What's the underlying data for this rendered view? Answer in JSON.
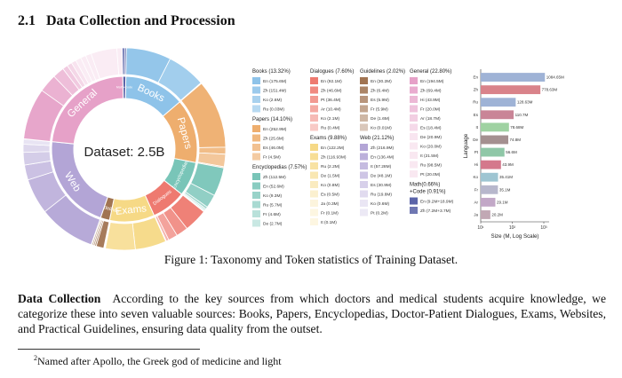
{
  "section": {
    "number": "2.1",
    "title": "Data Collection and Procession"
  },
  "caption": "Figure 1: Taxonomy and Token statistics of Training Dataset.",
  "paragraph": {
    "lead": "Data Collection",
    "text": "According to the key sources from which doctors and medical students acquire knowledge, we categorize these into seven valuable sources: Books, Papers, Encyclopedias, Doctor-Patient Dialogues, Exams, Websites, and Practical Guidelines, ensuring data quality from the outset."
  },
  "footnote": {
    "mark": "2",
    "text": "Named after Apollo, the Greek god of medicine and light"
  },
  "chart_data": [
    {
      "type": "pie",
      "center_label": "Dataset: 2.5B",
      "inner": [
        {
          "name": "Books",
          "value": 13.32,
          "color": "#8ec3e9"
        },
        {
          "name": "Papers",
          "value": 14.1,
          "color": "#eeae6e"
        },
        {
          "name": "Encyclopedias",
          "value": 7.57,
          "color": "#79c5b8"
        },
        {
          "name": "Dialogues",
          "value": 7.6,
          "color": "#ee7a70"
        },
        {
          "name": "Exams",
          "value": 9.88,
          "color": "#f6d986"
        },
        {
          "name": "Guidelines",
          "value": 2.02,
          "color": "#a17452"
        },
        {
          "name": "Web",
          "value": 21.12,
          "color": "#b3a5d6"
        },
        {
          "name": "General",
          "value": 22.8,
          "color": "#e6a1c8"
        },
        {
          "name": "Math+Code",
          "value": 0.66,
          "color": "#5b64a8"
        }
      ],
      "inner_labels": {
        "Books": "Books",
        "Papers": "Papers",
        "Encyclopedias": "Encyclopedias",
        "Exams": "Exams",
        "Web": "Web",
        "General": "General",
        "Guidelines": "Guidelines",
        "Dialogues": "Dialogues",
        "MathCode": "Math+Code"
      }
    },
    {
      "type": "table",
      "legend": [
        {
          "title": "Books (13.32%)",
          "color": "#8ec3e9",
          "items": [
            "En (175.6M)",
            "Zh (151.4M)",
            "Ko (2.6M)",
            "Ru (0.03M)"
          ]
        },
        {
          "title": "Papers (14.10%)",
          "color": "#eeae6e",
          "items": [
            "En (252.9M)",
            "Zh (25.6M)",
            "Es (46.0M)",
            "Fr (4.5M)"
          ]
        },
        {
          "title": "Encyclopedias (7.57%)",
          "color": "#79c5b8",
          "items": [
            "Zh (112.5M)",
            "En (52.6M)",
            "Ko (9.3M)",
            "Ru (5.7M)",
            "Fr (4.6M)",
            "De (2.7M)"
          ]
        },
        {
          "title": "Dialogues (7.60%)",
          "color": "#ee7a70",
          "items": [
            "En (92.1M)",
            "Zh (46.6M)",
            "Pt (36.4M)",
            "Ar (10.4M)",
            "Ko (2.1M)",
            "Ru (0.4M)"
          ]
        },
        {
          "title": "Exams (9.88%)",
          "color": "#f6d986",
          "items": [
            "En (122.2M)",
            "Zh (116.93M)",
            "Ru (2.2M)",
            "De (1.5M)",
            "Ko (0.8M)",
            "Es (0.5M)",
            "Ja (0.3M)",
            "Fr (0.1M)",
            "It (0.1M)"
          ]
        },
        {
          "title": "Guidelines (2.02%)",
          "color": "#a17452",
          "items": [
            "En (30.2M)",
            "Zh (6.4M)",
            "Es (5.9M)",
            "Fr (5.9M)",
            "De (1.6M)",
            "Ko (0.01M)"
          ]
        },
        {
          "title": "Web (21.12%)",
          "color": "#b3a5d6",
          "items": [
            "Zh (216.9M)",
            "En (136.4M)",
            "It (57.28M)",
            "De (48.1M)",
            "Es (30.9M)",
            "Ru (19.8M)",
            "Ko (0.6M)",
            "Pt (0.2M)"
          ]
        },
        {
          "title": "General (22.80%)",
          "color": "#e6a1c8",
          "items": [
            "En (194.5M)",
            "Zh (69.4M)",
            "Hi (43.9M)",
            "Fr (20.0M)",
            "Ar (18.7M)",
            "Es (18.4M)",
            "De (20.9M)",
            "Ko (20.0M)",
            "It (21.5M)",
            "Ru (98.5M)",
            "Pt (20.0M)"
          ]
        },
        {
          "title": "Math(0.66%)\n+Code (0.91%)",
          "color": "#5b64a8",
          "items": [
            "En (9.2M+18.9M)",
            "Zh (7.2M+3.7M)"
          ]
        }
      ]
    },
    {
      "type": "bar",
      "orientation": "horizontal",
      "categories": [
        "En",
        "Zh",
        "Ru",
        "Es",
        "It",
        "De",
        "Pt",
        "Hi",
        "Ko",
        "Fr",
        "Ar",
        "Ja"
      ],
      "values": [
        1084.65,
        778.63,
        128.63,
        110.7,
        78.68,
        74.8,
        56.6,
        43.9,
        35.41,
        35.1,
        29.1,
        20.2
      ],
      "labels": [
        "1084.65M",
        "778.63M",
        "128.63M",
        "110.7M",
        "78.68M",
        "74.8M",
        "56.6M",
        "43.9M",
        "35.41M",
        "35.1M",
        "29.1M",
        "20.2M"
      ],
      "colors": [
        "#9fb3d6",
        "#d9838a",
        "#9fb3d6",
        "#c98597",
        "#9fd2a2",
        "#a49090",
        "#8fc7a7",
        "#d4788c",
        "#9ec5d2",
        "#b7b7cc",
        "#c2a8c7",
        "#c1a8b4"
      ],
      "xlabel": "Size (M, Log Scale)",
      "ylabel": "Language",
      "xscale": "log",
      "xlim": [
        10,
        1000
      ],
      "xticks": [
        {
          "v": 10,
          "label": "10¹"
        },
        {
          "v": 100,
          "label": "10²"
        },
        {
          "v": 1000,
          "label": "10³"
        }
      ]
    }
  ]
}
